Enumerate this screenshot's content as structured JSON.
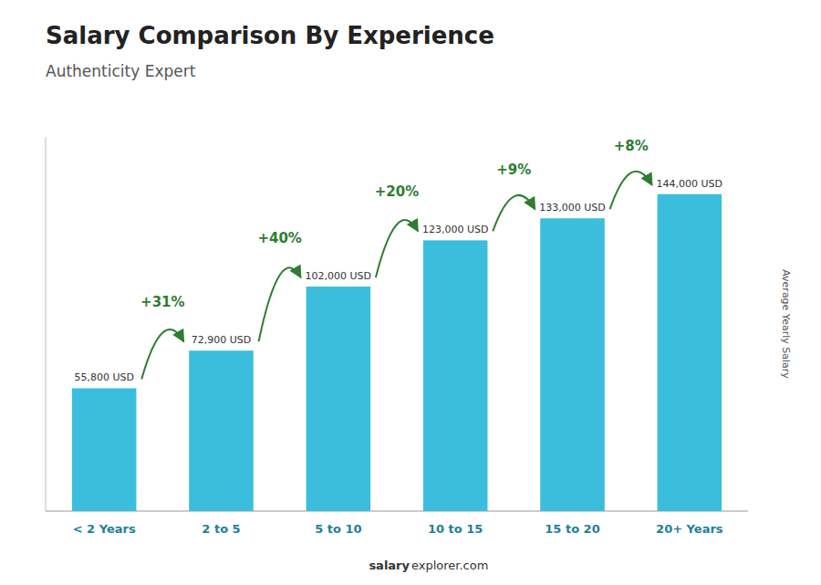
{
  "chart_data": {
    "type": "bar",
    "title": "Salary Comparison By Experience",
    "subtitle": "Authenticity Expert",
    "y_label": "Average Yearly Salary",
    "footer": [
      "salary",
      "explorer.com"
    ],
    "categories": [
      "< 2 Years",
      "2 to 5",
      "5 to 10",
      "10 to 15",
      "15 to 20",
      "20+ Years"
    ],
    "values": [
      55800,
      72900,
      102000,
      123000,
      133000,
      144000
    ],
    "value_labels": [
      "55,800 USD",
      "72,900 USD",
      "102,000 USD",
      "123,000 USD",
      "133,000 USD",
      "144,000 USD"
    ],
    "data_labels": true,
    "annotations": [
      "+31%",
      "+40%",
      "+20%",
      "+9%",
      "+8%"
    ],
    "color": "#3bbedd",
    "ylim": [
      0,
      170000
    ],
    "tick_labels": "x",
    "grid": false
  }
}
